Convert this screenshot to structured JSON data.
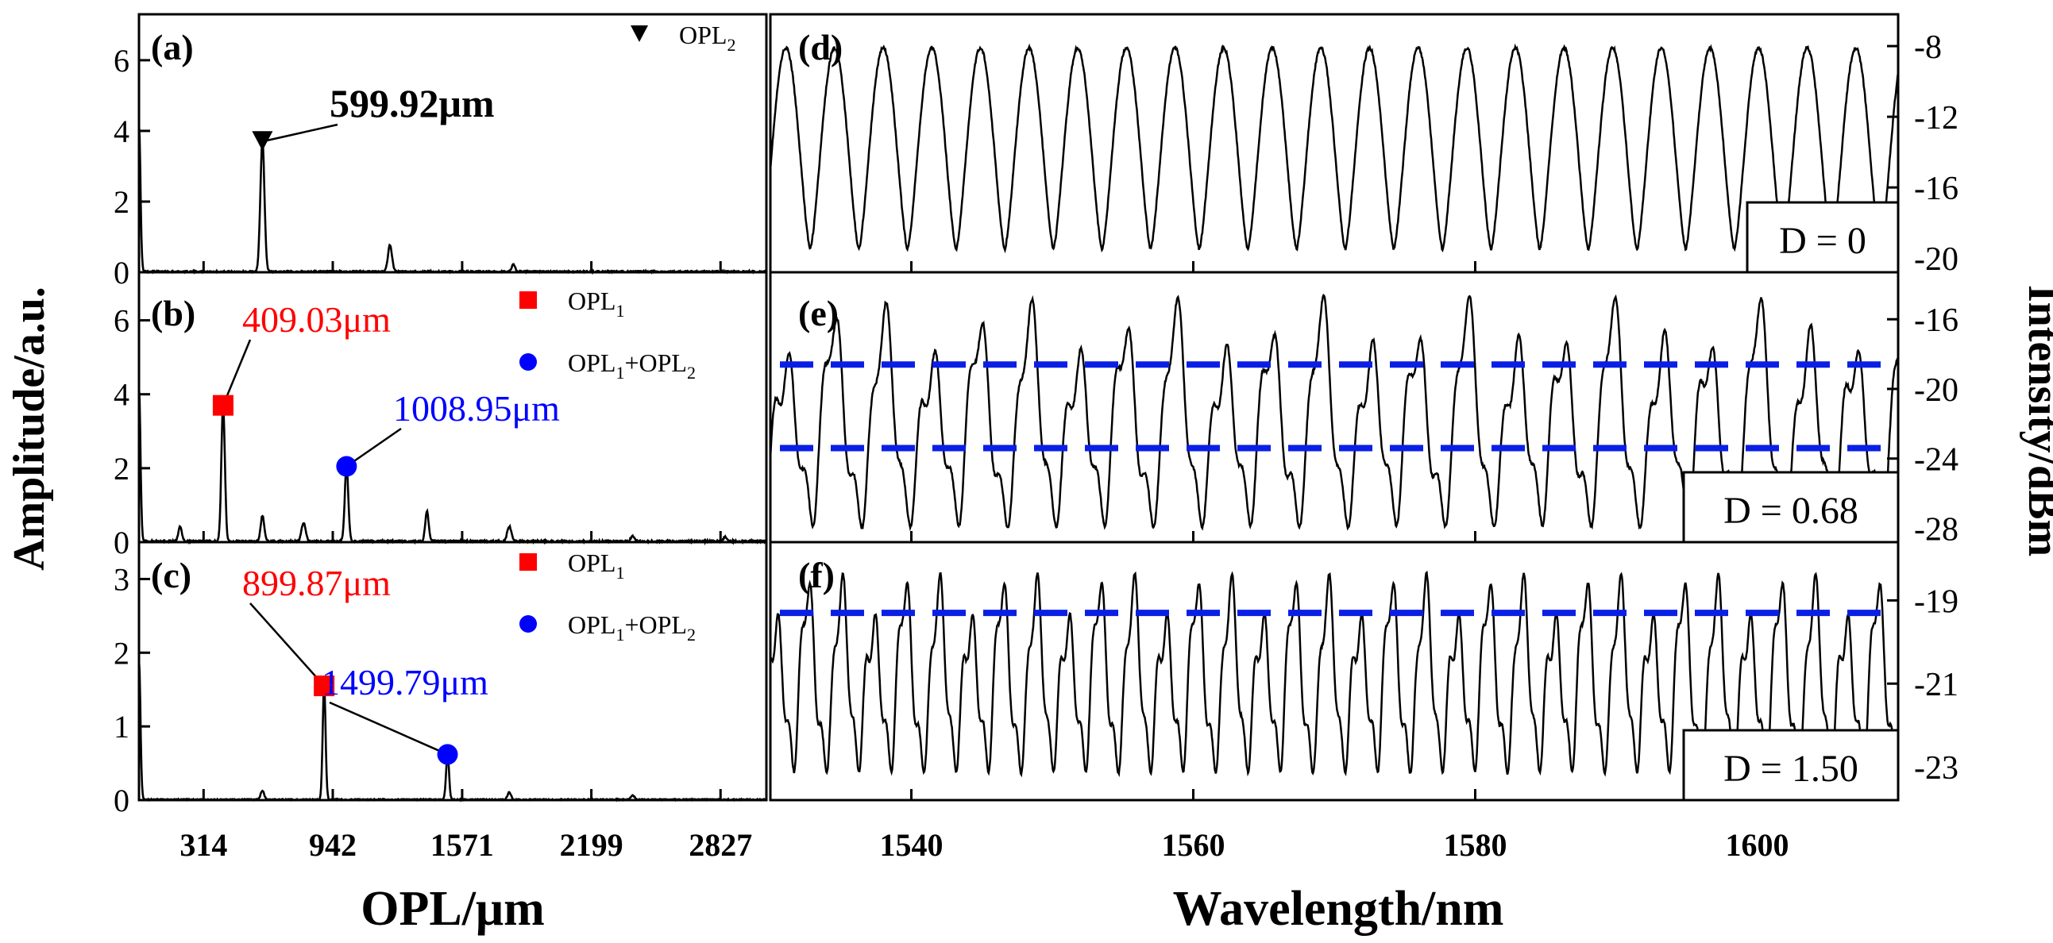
{
  "figure": {
    "left_ylabel": "Amplitude/a.u.",
    "right_ylabel": "Intensity/dBm",
    "left_xlabel": "OPL/μm",
    "right_xlabel": "Wavelength/nm"
  },
  "colors": {
    "black": "#000000",
    "red": "#ff0000",
    "blue": "#0000ff",
    "dashed": "#0a1fe6"
  },
  "chart_data": [
    {
      "panel": "(a)",
      "type": "line",
      "xlabel": "OPL/μm",
      "ylabel": "Amplitude/a.u.",
      "xlim": [
        0,
        3050
      ],
      "ylim": [
        0,
        7.3
      ],
      "xticks": [
        314,
        942,
        1571,
        2199,
        2827
      ],
      "xtick_labels": [
        "314",
        "942",
        "1571",
        "2199",
        "2827"
      ],
      "yticks": [
        0,
        2,
        4,
        6
      ],
      "ytick_labels": [
        "0",
        "2",
        "4",
        "6"
      ],
      "peaks": [
        [
          0,
          4.2,
          10
        ],
        [
          600,
          3.7,
          14
        ],
        [
          1220,
          0.75,
          14
        ],
        [
          1820,
          0.2,
          12
        ]
      ],
      "noise": 0.04,
      "markers": [
        {
          "shape": "triangle",
          "x": 600,
          "y": 3.7,
          "color": "#000000"
        }
      ],
      "legend": [
        {
          "shape": "triangle",
          "text": "OPL",
          "sub": "2",
          "color": "#000000"
        }
      ],
      "annotations": [
        {
          "text": "599.92μm",
          "color": "#000000",
          "bold": true,
          "size": 50
        }
      ]
    },
    {
      "panel": "(b)",
      "type": "line",
      "xlabel": "OPL/μm",
      "ylabel": "Amplitude/a.u.",
      "xlim": [
        0,
        3050
      ],
      "ylim": [
        0,
        7.3
      ],
      "xticks": [
        314,
        942,
        1571,
        2199,
        2827
      ],
      "xtick_labels": [
        "314",
        "942",
        "1571",
        "2199",
        "2827"
      ],
      "yticks": [
        0,
        2,
        4,
        6
      ],
      "ytick_labels": [
        "0",
        "2",
        "4",
        "6"
      ],
      "peaks": [
        [
          0,
          4.2,
          10
        ],
        [
          200,
          0.4,
          12
        ],
        [
          409,
          3.7,
          12
        ],
        [
          600,
          0.7,
          12
        ],
        [
          800,
          0.5,
          14
        ],
        [
          1009,
          2.05,
          12
        ],
        [
          1400,
          0.8,
          12
        ],
        [
          1800,
          0.4,
          14
        ],
        [
          2400,
          0.15,
          12
        ],
        [
          2850,
          0.12,
          12
        ]
      ],
      "noise": 0.05,
      "markers": [
        {
          "shape": "square",
          "x": 409,
          "y": 3.7,
          "color": "#ff0000"
        },
        {
          "shape": "circle",
          "x": 1009,
          "y": 2.05,
          "color": "#0000ff"
        }
      ],
      "legend": [
        {
          "shape": "square",
          "text": "OPL",
          "sub": "1",
          "color": "#ff0000"
        },
        {
          "shape": "circle",
          "text": "OPL",
          "sub": "1",
          "text2": "+OPL",
          "sub2": "2",
          "color": "#0000ff"
        }
      ],
      "annotations": [
        {
          "text": "409.03μm",
          "color": "#ff0000",
          "bold": false,
          "size": 46
        },
        {
          "text": "1008.95μm",
          "color": "#0000ff",
          "bold": false,
          "size": 46
        }
      ]
    },
    {
      "panel": "(c)",
      "type": "line",
      "xlabel": "OPL/μm",
      "ylabel": "Amplitude/a.u.",
      "xlim": [
        0,
        3050
      ],
      "ylim": [
        0,
        3.5
      ],
      "xticks": [
        314,
        942,
        1571,
        2199,
        2827
      ],
      "xtick_labels": [
        "314",
        "942",
        "1571",
        "2199",
        "2827"
      ],
      "yticks": [
        0,
        1,
        2,
        3
      ],
      "ytick_labels": [
        "0",
        "1",
        "2",
        "3"
      ],
      "peaks": [
        [
          0,
          1.9,
          10
        ],
        [
          600,
          0.12,
          12
        ],
        [
          900,
          1.55,
          10
        ],
        [
          1500,
          0.62,
          10
        ],
        [
          1800,
          0.1,
          12
        ],
        [
          2400,
          0.06,
          12
        ]
      ],
      "noise": 0.015,
      "markers": [
        {
          "shape": "square",
          "x": 900,
          "y": 1.55,
          "color": "#ff0000"
        },
        {
          "shape": "circle",
          "x": 1500,
          "y": 0.62,
          "color": "#0000ff"
        }
      ],
      "legend": [
        {
          "shape": "square",
          "text": "OPL",
          "sub": "1",
          "color": "#ff0000"
        },
        {
          "shape": "circle",
          "text": "OPL",
          "sub": "1",
          "text2": "+OPL",
          "sub2": "2",
          "color": "#0000ff"
        }
      ],
      "annotations": [
        {
          "text": "899.87μm",
          "color": "#ff0000",
          "bold": false,
          "size": 46
        },
        {
          "text": "1499.79μm",
          "color": "#0000ff",
          "bold": false,
          "size": 46
        }
      ]
    },
    {
      "panel": "(d)",
      "type": "line",
      "xlabel": "Wavelength/nm",
      "ylabel": "Intensity/dBm",
      "xlim": [
        1530,
        1610
      ],
      "ylim": [
        -20.8,
        -6.2
      ],
      "xticks": [
        1540,
        1560,
        1580,
        1600
      ],
      "xtick_labels": [
        "1540",
        "1560",
        "1580",
        "1600"
      ],
      "yticks": [
        -8,
        -12,
        -16,
        -20
      ],
      "ytick_labels": [
        "-8",
        "-12",
        "-16",
        "-20"
      ],
      "signal": {
        "period": 3.45,
        "phase": 1531.1,
        "max": -8.1,
        "min": -19.5,
        "shape": 1.35
      },
      "dashed": [],
      "legend_box": "D = 0"
    },
    {
      "panel": "(e)",
      "type": "line",
      "xlabel": "Wavelength/nm",
      "ylabel": "Intensity/dBm",
      "xlim": [
        1530,
        1610
      ],
      "ylim": [
        -28.8,
        -13.3
      ],
      "xticks": [
        1540,
        1560,
        1580,
        1600
      ],
      "xtick_labels": [
        "1540",
        "1560",
        "1580",
        "1600"
      ],
      "yticks": [
        -16,
        -20,
        -24,
        -28
      ],
      "ytick_labels": [
        "-16",
        "-20",
        "-24",
        "-28"
      ],
      "signal": {
        "period": 3.45,
        "phase": 1531.1,
        "max": -15.5,
        "min": -27.0,
        "mod_period": 5.1,
        "mod_depth": 0.3
      },
      "dashed": [
        -18.6,
        -23.4
      ],
      "legend_box": "D = 0.68"
    },
    {
      "panel": "(f)",
      "type": "line",
      "xlabel": "Wavelength/nm",
      "ylabel": "Intensity/dBm",
      "xlim": [
        1530,
        1610
      ],
      "ylim": [
        -23.8,
        -17.6
      ],
      "xticks": [
        1540,
        1560,
        1580,
        1600
      ],
      "xtick_labels": [
        "1540",
        "1560",
        "1580",
        "1600"
      ],
      "yticks": [
        -19,
        -21,
        -23
      ],
      "ytick_labels": [
        "-19",
        "-21",
        "-23"
      ],
      "signal": {
        "period": 2.3,
        "phase": 1530.4,
        "max": -18.5,
        "min": -22.8,
        "mod_period": 3.45,
        "mod_depth": 0.28
      },
      "dashed": [
        -19.3
      ],
      "legend_box": "D = 1.50"
    }
  ]
}
